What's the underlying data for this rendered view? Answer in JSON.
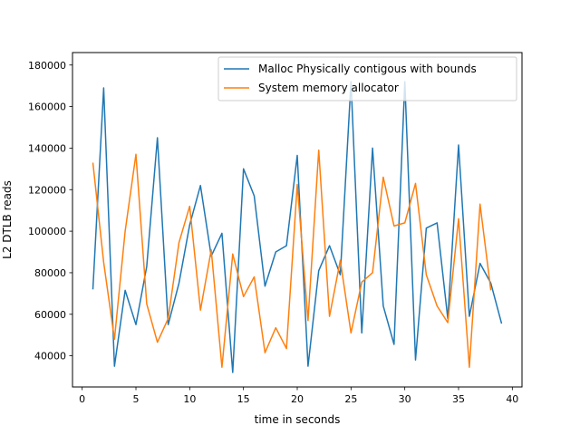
{
  "chart_data": {
    "type": "line",
    "title": "",
    "xlabel": "time in seconds",
    "ylabel": "L2 DTLB reads",
    "xlim": [
      -0.9,
      40.9
    ],
    "ylim": [
      25000,
      186000
    ],
    "xticks": [
      0,
      5,
      10,
      15,
      20,
      25,
      30,
      35,
      40
    ],
    "yticks": [
      40000,
      60000,
      80000,
      100000,
      120000,
      140000,
      160000,
      180000
    ],
    "grid": false,
    "legend_position": "upper right",
    "series": [
      {
        "name": "Malloc Physically contigous with bounds",
        "color": "#1f77b4",
        "x": [
          1,
          2,
          3,
          4,
          5,
          6,
          7,
          8,
          9,
          10,
          11,
          12,
          13,
          14,
          15,
          16,
          17,
          18,
          19,
          20,
          21,
          22,
          23,
          24,
          25,
          26,
          27,
          28,
          29,
          30,
          31,
          32,
          33,
          34,
          35,
          36,
          37,
          38,
          39
        ],
        "y": [
          72000,
          169000,
          35000,
          71500,
          55000,
          83000,
          145000,
          55000,
          75000,
          103000,
          122000,
          88000,
          99000,
          32000,
          130000,
          117000,
          73500,
          90000,
          93000,
          136500,
          35000,
          81000,
          93000,
          79000,
          172000,
          51000,
          140000,
          64000,
          45500,
          172000,
          38000,
          101500,
          104000,
          58000,
          141500,
          59000,
          84500,
          75000,
          55500
        ]
      },
      {
        "name": "System memory allocator",
        "color": "#ff7f0e",
        "x": [
          1,
          2,
          3,
          4,
          5,
          6,
          7,
          8,
          9,
          10,
          11,
          12,
          13,
          14,
          15,
          16,
          17,
          18,
          19,
          20,
          21,
          22,
          23,
          24,
          25,
          26,
          27,
          28,
          29,
          30,
          31,
          32,
          33,
          34,
          35,
          36,
          37,
          38
        ],
        "y": [
          133000,
          85000,
          48000,
          100000,
          137000,
          65000,
          46500,
          58000,
          94500,
          112000,
          62000,
          91000,
          34500,
          89000,
          68500,
          78000,
          41500,
          53500,
          43500,
          122500,
          57000,
          139000,
          59000,
          86000,
          51000,
          75500,
          80000,
          126000,
          102500,
          104000,
          123000,
          79000,
          64000,
          56000,
          106000,
          34500,
          113000,
          71500
        ]
      }
    ]
  }
}
